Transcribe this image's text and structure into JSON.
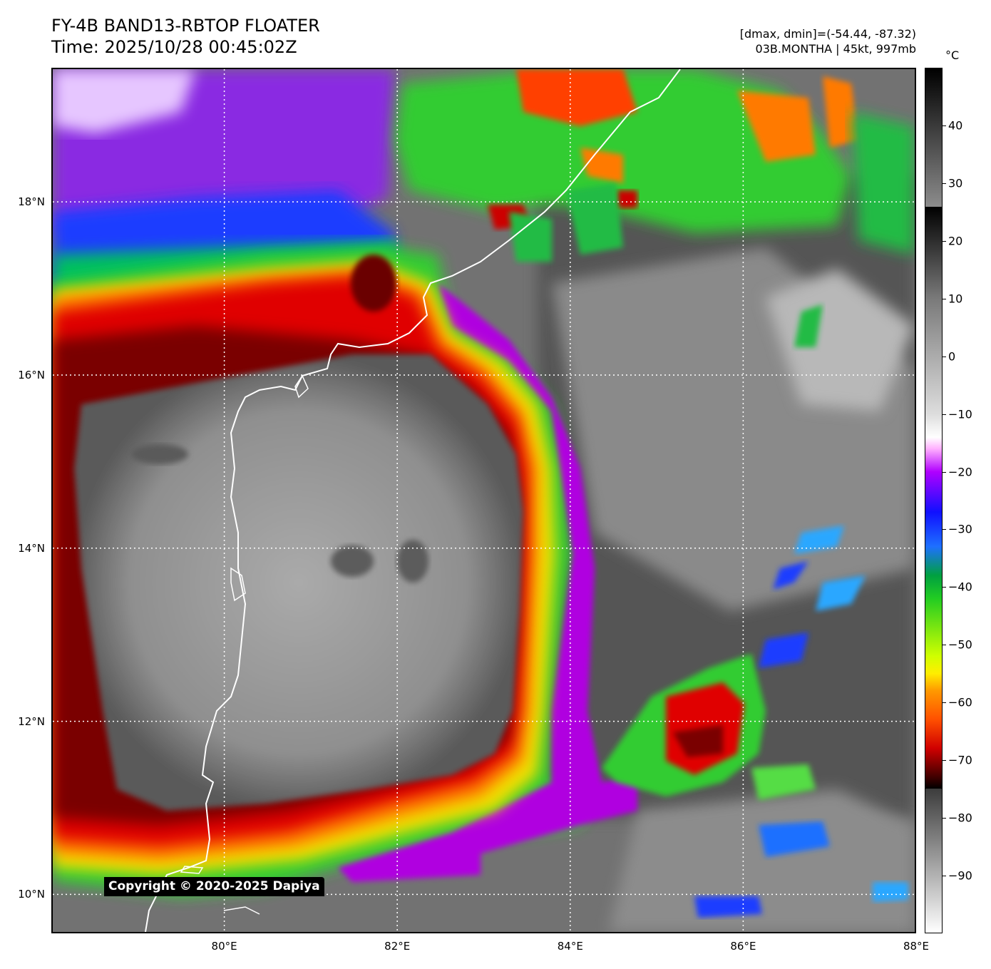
{
  "header": {
    "title_line1": "FY-4B BAND13-RBTOP FLOATER",
    "title_line2": "Time: 2025/10/28 00:45:02Z",
    "meta_line1": "[dmax, dmin]=(-54.44, -87.32)",
    "meta_line2": "03B.MONTHA | 45kt, 997mb"
  },
  "map": {
    "lon_ticks": [
      {
        "value": 80,
        "label": "80°E"
      },
      {
        "value": 82,
        "label": "82°E"
      },
      {
        "value": 84,
        "label": "84°E"
      },
      {
        "value": 86,
        "label": "86°E"
      },
      {
        "value": 88,
        "label": "88°E"
      }
    ],
    "lat_ticks": [
      {
        "value": 18,
        "label": "18°N"
      },
      {
        "value": 16,
        "label": "16°N"
      },
      {
        "value": 14,
        "label": "14°N"
      },
      {
        "value": 12,
        "label": "12°N"
      },
      {
        "value": 10,
        "label": "10°N"
      }
    ],
    "lon_range": [
      78,
      88
    ],
    "lat_range": [
      9.55,
      19.55
    ],
    "copyright": "Copyright © 2020-2025 Dapiya"
  },
  "colorbar": {
    "unit": "°C",
    "range": [
      -100,
      50
    ],
    "ticks": [
      {
        "value": 40,
        "label": "40"
      },
      {
        "value": 30,
        "label": "30"
      },
      {
        "value": 20,
        "label": "20"
      },
      {
        "value": 10,
        "label": "10"
      },
      {
        "value": 0,
        "label": "0"
      },
      {
        "value": -10,
        "label": "−10"
      },
      {
        "value": -20,
        "label": "−20"
      },
      {
        "value": -30,
        "label": "−30"
      },
      {
        "value": -40,
        "label": "−40"
      },
      {
        "value": -50,
        "label": "−50"
      },
      {
        "value": -60,
        "label": "−60"
      },
      {
        "value": -70,
        "label": "−70"
      },
      {
        "value": -80,
        "label": "−80"
      },
      {
        "value": -90,
        "label": "−90"
      }
    ]
  }
}
